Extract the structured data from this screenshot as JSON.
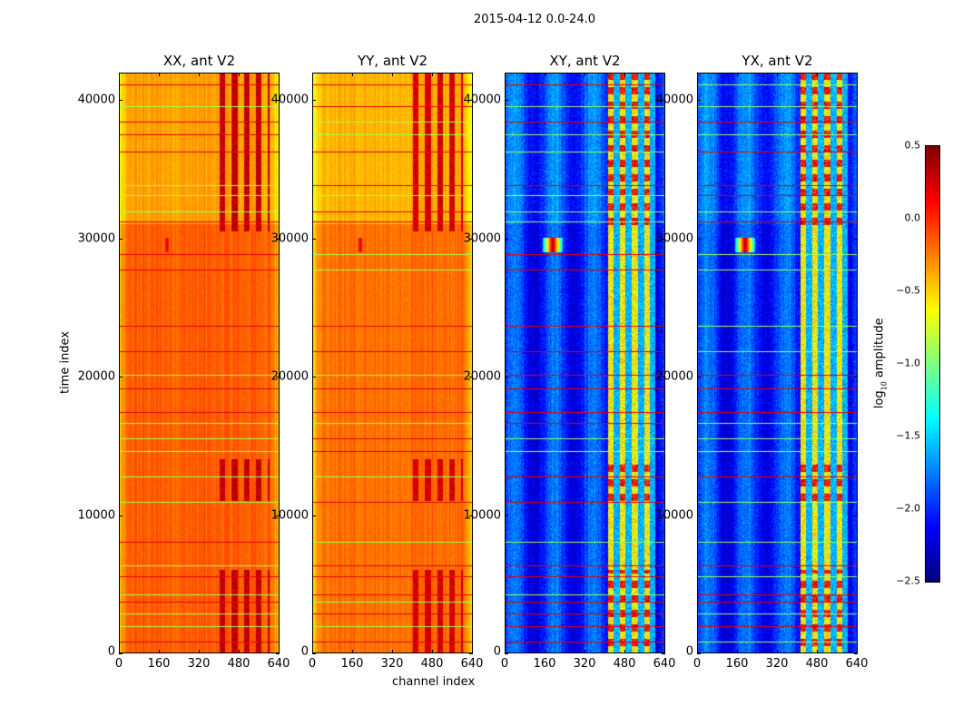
{
  "chart_data": {
    "type": "heatmap",
    "title": "2015-04-12 0.0-24.0",
    "xlabel": "channel index",
    "ylabel": "time index",
    "xlim": [
      0,
      640
    ],
    "ylim": [
      0,
      42000
    ],
    "xticks": [
      "0",
      "160",
      "320",
      "480",
      "640"
    ],
    "yticks": [
      "0",
      "10000",
      "20000",
      "30000",
      "40000"
    ],
    "colorbar": {
      "label_main": "log",
      "label_sub": "10",
      "label_rest": " amplitude",
      "range": [
        -2.5,
        0.5
      ],
      "ticks": [
        "0.5",
        "0.0",
        "−0.5",
        "−1.0",
        "−1.5",
        "−2.0",
        "−2.5"
      ],
      "colormap": "jet"
    },
    "panels": [
      {
        "title": "XX, ant V2",
        "base": -0.15,
        "upper_base": -0.35,
        "hot_channels": [
          400,
          600
        ],
        "hot_value": 0.3,
        "source_value": 0.3
      },
      {
        "title": "YY, ant V2",
        "base": -0.2,
        "upper_base": -0.4,
        "hot_channels": [
          400,
          600
        ],
        "hot_value": 0.25,
        "source_value": 0.3
      },
      {
        "title": "XY, ant V2",
        "base": -2.0,
        "upper_base": -1.9,
        "hot_channels": [
          410,
          600
        ],
        "hot_value": -0.6,
        "source_value": 0.4
      },
      {
        "title": "YX, ant V2",
        "base": -2.0,
        "upper_base": -1.9,
        "hot_channels": [
          410,
          600
        ],
        "hot_value": -0.6,
        "source_value": 0.4
      }
    ],
    "hot_time_ranges": [
      [
        0,
        6000
      ],
      [
        11000,
        14000
      ],
      [
        30500,
        42000
      ]
    ],
    "source": {
      "channel": 190,
      "time": 29500
    },
    "flagged_times": [
      800,
      1900,
      2800,
      3700,
      4200,
      5500,
      6300,
      8000,
      10900,
      12700,
      14600,
      15500,
      16600,
      17400,
      19100,
      20100,
      21800,
      23600,
      27700,
      28800,
      31200,
      31900,
      33100,
      33800,
      36200,
      37500,
      38400,
      39500,
      41100
    ]
  }
}
